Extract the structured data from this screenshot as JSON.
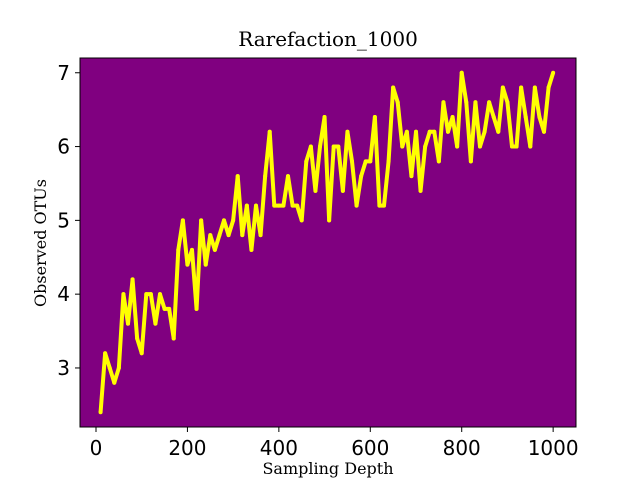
{
  "chart_data": {
    "type": "line",
    "title": "Rarefaction_1000",
    "xlabel": "Sampling Depth",
    "ylabel": "Observed OTUs",
    "xlim": [
      -35,
      1050
    ],
    "ylim": [
      2.2,
      7.2
    ],
    "xticks": [
      0,
      200,
      400,
      600,
      800,
      1000
    ],
    "yticks": [
      3,
      4,
      5,
      6,
      7
    ],
    "grid": false,
    "legend": "none",
    "background_color": "#800080",
    "line_color": "#FFFF00",
    "series": [
      {
        "x": [
          10,
          20,
          30,
          40,
          50,
          60,
          70,
          80,
          90,
          100,
          110,
          120,
          130,
          140,
          150,
          160,
          170,
          180,
          190,
          200,
          210,
          220,
          230,
          240,
          250,
          260,
          270,
          280,
          290,
          300,
          310,
          320,
          330,
          340,
          350,
          360,
          370,
          380,
          390,
          400,
          410,
          420,
          430,
          440,
          450,
          460,
          470,
          480,
          490,
          500,
          510,
          520,
          530,
          540,
          550,
          560,
          570,
          580,
          590,
          600,
          610,
          620,
          630,
          640,
          650,
          660,
          670,
          680,
          690,
          700,
          710,
          720,
          730,
          740,
          750,
          760,
          770,
          780,
          790,
          800,
          810,
          820,
          830,
          840,
          850,
          860,
          870,
          880,
          890,
          900,
          910,
          920,
          930,
          940,
          950,
          960,
          970,
          980,
          990,
          1000
        ],
        "values": [
          2.4,
          3.2,
          3.0,
          2.8,
          3.0,
          4.0,
          3.6,
          4.2,
          3.4,
          3.2,
          4.0,
          4.0,
          3.6,
          4.0,
          3.8,
          3.8,
          3.4,
          4.6,
          5.0,
          4.4,
          4.6,
          3.8,
          5.0,
          4.4,
          4.8,
          4.6,
          4.8,
          5.0,
          4.8,
          5.0,
          5.6,
          4.8,
          5.2,
          4.6,
          5.2,
          4.8,
          5.6,
          6.2,
          5.2,
          5.2,
          5.2,
          5.6,
          5.2,
          5.2,
          5.0,
          5.8,
          6.0,
          5.4,
          6.0,
          6.4,
          5.0,
          6.0,
          6.0,
          5.4,
          6.2,
          5.8,
          5.2,
          5.6,
          5.8,
          5.8,
          6.4,
          5.2,
          5.2,
          5.8,
          6.8,
          6.6,
          6.0,
          6.2,
          5.6,
          6.2,
          5.4,
          6.0,
          6.2,
          6.2,
          5.8,
          6.6,
          6.2,
          6.4,
          6.0,
          7.0,
          6.6,
          5.8,
          6.6,
          6.0,
          6.2,
          6.6,
          6.4,
          6.2,
          6.8,
          6.6,
          6.0,
          6.0,
          6.8,
          6.4,
          6.0,
          6.8,
          6.4,
          6.2,
          6.8,
          7.0
        ]
      }
    ]
  }
}
